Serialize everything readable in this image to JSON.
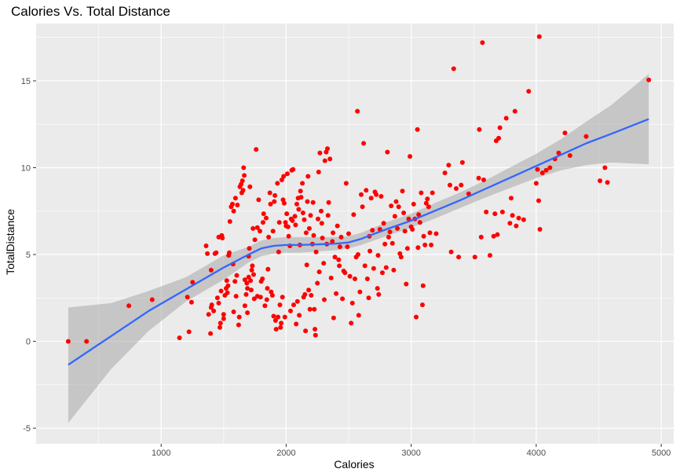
{
  "chart_data": {
    "type": "scatter",
    "title": "Calories Vs. Total Distance",
    "xlabel": "Calories",
    "ylabel": "TotalDistance",
    "xlim": [
      0,
      5100
    ],
    "ylim": [
      -5.9,
      18.3
    ],
    "x_ticks": [
      1000,
      2000,
      3000,
      4000,
      5000
    ],
    "y_ticks": [
      -5,
      0,
      5,
      10,
      15
    ],
    "x_minor": [
      500,
      1500,
      2500,
      3500,
      4500
    ],
    "y_minor": [
      -2.5,
      2.5,
      7.5,
      12.5,
      17.5
    ],
    "grid": true,
    "legend": "none",
    "colors": {
      "panel": "#ebebeb",
      "grid": "#ffffff",
      "points": "#ff0000",
      "smooth_line": "#3366ff",
      "ribbon": "#999999"
    },
    "points": [
      [
        257,
        0
      ],
      [
        403,
        0
      ],
      [
        742,
        2.05
      ],
      [
        928,
        2.4
      ],
      [
        1147,
        0.2
      ],
      [
        1210,
        2.55
      ],
      [
        1223,
        0.55
      ],
      [
        1243,
        2.25
      ],
      [
        1252,
        3.4
      ],
      [
        1360,
        5.5
      ],
      [
        1370,
        5.05
      ],
      [
        1380,
        1.55
      ],
      [
        1395,
        0.45
      ],
      [
        1400,
        1.95
      ],
      [
        1400,
        4.1
      ],
      [
        1405,
        2.1
      ],
      [
        1420,
        1.75
      ],
      [
        1430,
        5.05
      ],
      [
        1440,
        5.1
      ],
      [
        1450,
        2.5
      ],
      [
        1460,
        2.2
      ],
      [
        1460,
        6.0
      ],
      [
        1470,
        0.8
      ],
      [
        1475,
        1.05
      ],
      [
        1480,
        2.9
      ],
      [
        1485,
        6.1
      ],
      [
        1490,
        5.95
      ],
      [
        1500,
        1.3
      ],
      [
        1500,
        1.55
      ],
      [
        1510,
        2.65
      ],
      [
        1520,
        3.05
      ],
      [
        1525,
        3.5
      ],
      [
        1530,
        2.8
      ],
      [
        1535,
        3.2
      ],
      [
        1540,
        4.95
      ],
      [
        1545,
        5.1
      ],
      [
        1550,
        6.9
      ],
      [
        1560,
        7.75
      ],
      [
        1570,
        7.9
      ],
      [
        1575,
        4.45
      ],
      [
        1580,
        1.7
      ],
      [
        1580,
        7.5
      ],
      [
        1590,
        3.45
      ],
      [
        1595,
        8.25
      ],
      [
        1600,
        2.6
      ],
      [
        1605,
        3.8
      ],
      [
        1610,
        7.85
      ],
      [
        1620,
        0.95
      ],
      [
        1625,
        1.4
      ],
      [
        1630,
        8.9
      ],
      [
        1640,
        9.05
      ],
      [
        1645,
        8.55
      ],
      [
        1650,
        9.25
      ],
      [
        1655,
        8.7
      ],
      [
        1660,
        10.0
      ],
      [
        1665,
        9.55
      ],
      [
        1670,
        3.55
      ],
      [
        1670,
        2.05
      ],
      [
        1680,
        2.7
      ],
      [
        1685,
        3.35
      ],
      [
        1690,
        3.05
      ],
      [
        1690,
        1.65
      ],
      [
        1700,
        3.7
      ],
      [
        1700,
        4.9
      ],
      [
        1705,
        5.35
      ],
      [
        1710,
        8.9
      ],
      [
        1715,
        3.5
      ],
      [
        1720,
        2.95
      ],
      [
        1725,
        4.1
      ],
      [
        1730,
        4.35
      ],
      [
        1735,
        6.5
      ],
      [
        1740,
        3.85
      ],
      [
        1745,
        2.45
      ],
      [
        1750,
        5.85
      ],
      [
        1760,
        11.05
      ],
      [
        1770,
        6.55
      ],
      [
        1770,
        2.6
      ],
      [
        1780,
        8.15
      ],
      [
        1790,
        6.35
      ],
      [
        1795,
        2.55
      ],
      [
        1800,
        3.45
      ],
      [
        1810,
        3.6
      ],
      [
        1815,
        6.85
      ],
      [
        1820,
        7.35
      ],
      [
        1830,
        2.05
      ],
      [
        1840,
        7.1
      ],
      [
        1845,
        2.4
      ],
      [
        1850,
        3.05
      ],
      [
        1855,
        4.15
      ],
      [
        1860,
        6.0
      ],
      [
        1870,
        8.55
      ],
      [
        1875,
        7.9
      ],
      [
        1880,
        2.85
      ],
      [
        1890,
        2.65
      ],
      [
        1895,
        6.35
      ],
      [
        1900,
        1.45
      ],
      [
        1905,
        8.05
      ],
      [
        1910,
        8.4
      ],
      [
        1915,
        1.2
      ],
      [
        1920,
        0.7
      ],
      [
        1930,
        9.1
      ],
      [
        1935,
        1.4
      ],
      [
        1940,
        5.15
      ],
      [
        1945,
        6.85
      ],
      [
        1950,
        2.1
      ],
      [
        1955,
        0.8
      ],
      [
        1960,
        1.05
      ],
      [
        1965,
        9.3
      ],
      [
        1970,
        2.55
      ],
      [
        1975,
        8.15
      ],
      [
        1980,
        9.5
      ],
      [
        1985,
        7.95
      ],
      [
        1990,
        1.4
      ],
      [
        1995,
        6.85
      ],
      [
        2000,
        6.65
      ],
      [
        2005,
        7.35
      ],
      [
        2010,
        9.65
      ],
      [
        2015,
        6.6
      ],
      [
        2020,
        6.05
      ],
      [
        2030,
        5.5
      ],
      [
        2035,
        1.75
      ],
      [
        2040,
        7.05
      ],
      [
        2045,
        9.85
      ],
      [
        2050,
        6.95
      ],
      [
        2055,
        9.9
      ],
      [
        2060,
        2.1
      ],
      [
        2070,
        7.2
      ],
      [
        2075,
        6.7
      ],
      [
        2080,
        1.0
      ],
      [
        2085,
        7.9
      ],
      [
        2090,
        2.3
      ],
      [
        2095,
        8.25
      ],
      [
        2100,
        7.6
      ],
      [
        2105,
        1.5
      ],
      [
        2110,
        5.55
      ],
      [
        2115,
        8.65
      ],
      [
        2120,
        8.3
      ],
      [
        2130,
        9.1
      ],
      [
        2135,
        7.4
      ],
      [
        2140,
        2.55
      ],
      [
        2145,
        7.0
      ],
      [
        2150,
        2.7
      ],
      [
        2155,
        0.6
      ],
      [
        2160,
        6.25
      ],
      [
        2165,
        4.4
      ],
      [
        2170,
        8.05
      ],
      [
        2175,
        9.5
      ],
      [
        2180,
        2.95
      ],
      [
        2185,
        6.5
      ],
      [
        2190,
        1.85
      ],
      [
        2195,
        7.25
      ],
      [
        2200,
        2.65
      ],
      [
        2210,
        5.6
      ],
      [
        2215,
        8.0
      ],
      [
        2220,
        6.1
      ],
      [
        2225,
        1.85
      ],
      [
        2230,
        0.7
      ],
      [
        2235,
        0.35
      ],
      [
        2240,
        5.15
      ],
      [
        2250,
        3.35
      ],
      [
        2255,
        7.05
      ],
      [
        2260,
        9.75
      ],
      [
        2265,
        4.0
      ],
      [
        2270,
        10.85
      ],
      [
        2280,
        7.5
      ],
      [
        2285,
        6.8
      ],
      [
        2290,
        5.95
      ],
      [
        2300,
        4.5
      ],
      [
        2305,
        2.4
      ],
      [
        2310,
        10.4
      ],
      [
        2320,
        10.9
      ],
      [
        2325,
        5.6
      ],
      [
        2330,
        11.1
      ],
      [
        2335,
        7.25
      ],
      [
        2340,
        8.0
      ],
      [
        2350,
        10.5
      ],
      [
        2360,
        3.65
      ],
      [
        2370,
        5.75
      ],
      [
        2375,
        6.25
      ],
      [
        2380,
        1.35
      ],
      [
        2390,
        4.85
      ],
      [
        2400,
        2.75
      ],
      [
        2410,
        6.65
      ],
      [
        2420,
        4.7
      ],
      [
        2425,
        4.35
      ],
      [
        2430,
        5.45
      ],
      [
        2440,
        6.0
      ],
      [
        2450,
        2.45
      ],
      [
        2460,
        4.05
      ],
      [
        2470,
        3.95
      ],
      [
        2480,
        9.1
      ],
      [
        2490,
        5.45
      ],
      [
        2500,
        6.2
      ],
      [
        2510,
        3.75
      ],
      [
        2520,
        1.05
      ],
      [
        2530,
        2.2
      ],
      [
        2540,
        7.3
      ],
      [
        2550,
        3.6
      ],
      [
        2560,
        4.85
      ],
      [
        2570,
        13.25
      ],
      [
        2575,
        5.0
      ],
      [
        2580,
        1.5
      ],
      [
        2590,
        2.85
      ],
      [
        2600,
        8.45
      ],
      [
        2610,
        7.75
      ],
      [
        2620,
        11.4
      ],
      [
        2630,
        4.35
      ],
      [
        2640,
        8.7
      ],
      [
        2650,
        3.6
      ],
      [
        2660,
        2.5
      ],
      [
        2665,
        6.05
      ],
      [
        2670,
        5.2
      ],
      [
        2680,
        8.25
      ],
      [
        2690,
        6.4
      ],
      [
        2700,
        4.2
      ],
      [
        2710,
        8.6
      ],
      [
        2720,
        8.45
      ],
      [
        2730,
        3.05
      ],
      [
        2735,
        4.95
      ],
      [
        2740,
        2.7
      ],
      [
        2750,
        6.45
      ],
      [
        2760,
        8.35
      ],
      [
        2770,
        3.95
      ],
      [
        2780,
        6.8
      ],
      [
        2790,
        5.6
      ],
      [
        2800,
        4.25
      ],
      [
        2810,
        10.9
      ],
      [
        2820,
        6.0
      ],
      [
        2830,
        6.3
      ],
      [
        2840,
        7.8
      ],
      [
        2850,
        5.65
      ],
      [
        2860,
        4.1
      ],
      [
        2870,
        7.2
      ],
      [
        2880,
        8.05
      ],
      [
        2890,
        6.5
      ],
      [
        2900,
        7.75
      ],
      [
        2910,
        5.05
      ],
      [
        2920,
        4.85
      ],
      [
        2930,
        8.65
      ],
      [
        2940,
        7.4
      ],
      [
        2950,
        6.35
      ],
      [
        2960,
        3.3
      ],
      [
        2970,
        5.35
      ],
      [
        2980,
        7.05
      ],
      [
        2990,
        10.65
      ],
      [
        3000,
        6.6
      ],
      [
        3010,
        6.45
      ],
      [
        3020,
        7.9
      ],
      [
        3030,
        7.05
      ],
      [
        3040,
        1.4
      ],
      [
        3050,
        12.2
      ],
      [
        3055,
        5.4
      ],
      [
        3060,
        7.3
      ],
      [
        3070,
        6.85
      ],
      [
        3080,
        8.55
      ],
      [
        3090,
        2.1
      ],
      [
        3095,
        3.2
      ],
      [
        3100,
        6.05
      ],
      [
        3110,
        5.55
      ],
      [
        3120,
        7.95
      ],
      [
        3130,
        8.2
      ],
      [
        3140,
        7.75
      ],
      [
        3150,
        6.25
      ],
      [
        3160,
        5.55
      ],
      [
        3170,
        8.55
      ],
      [
        3200,
        6.2
      ],
      [
        3270,
        9.7
      ],
      [
        3300,
        10.15
      ],
      [
        3310,
        9.0
      ],
      [
        3320,
        5.15
      ],
      [
        3340,
        15.7
      ],
      [
        3360,
        8.8
      ],
      [
        3380,
        4.85
      ],
      [
        3400,
        9.0
      ],
      [
        3410,
        10.3
      ],
      [
        3460,
        8.5
      ],
      [
        3510,
        4.85
      ],
      [
        3540,
        9.4
      ],
      [
        3545,
        12.2
      ],
      [
        3560,
        6.0
      ],
      [
        3570,
        17.2
      ],
      [
        3580,
        9.3
      ],
      [
        3600,
        7.45
      ],
      [
        3630,
        4.95
      ],
      [
        3660,
        6.05
      ],
      [
        3670,
        7.35
      ],
      [
        3680,
        11.55
      ],
      [
        3690,
        6.15
      ],
      [
        3700,
        11.7
      ],
      [
        3710,
        12.3
      ],
      [
        3730,
        7.45
      ],
      [
        3760,
        12.85
      ],
      [
        3790,
        6.8
      ],
      [
        3800,
        8.25
      ],
      [
        3810,
        7.25
      ],
      [
        3830,
        13.25
      ],
      [
        3840,
        6.65
      ],
      [
        3860,
        7.1
      ],
      [
        3900,
        7.0
      ],
      [
        3940,
        14.4
      ],
      [
        4000,
        9.1
      ],
      [
        4010,
        9.9
      ],
      [
        4020,
        8.1
      ],
      [
        4025,
        17.55
      ],
      [
        4030,
        6.45
      ],
      [
        4050,
        9.7
      ],
      [
        4080,
        9.85
      ],
      [
        4110,
        10.0
      ],
      [
        4150,
        10.5
      ],
      [
        4180,
        10.85
      ],
      [
        4230,
        12.0
      ],
      [
        4270,
        10.7
      ],
      [
        4400,
        11.8
      ],
      [
        4510,
        9.25
      ],
      [
        4550,
        10.0
      ],
      [
        4570,
        9.15
      ],
      [
        4900,
        15.05
      ]
    ],
    "smooth": {
      "x": [
        257,
        600,
        900,
        1200,
        1500,
        1700,
        1800,
        1900,
        2000,
        2100,
        2200,
        2300,
        2400,
        2500,
        2600,
        2700,
        2800,
        2900,
        3000,
        3200,
        3400,
        3600,
        3800,
        4000,
        4200,
        4400,
        4600,
        4900
      ],
      "fit": [
        -1.35,
        0.3,
        1.75,
        3.0,
        4.25,
        5.0,
        5.35,
        5.5,
        5.55,
        5.55,
        5.57,
        5.6,
        5.63,
        5.7,
        5.9,
        6.18,
        6.45,
        6.7,
        6.95,
        7.55,
        8.15,
        8.8,
        9.45,
        10.1,
        10.75,
        11.4,
        11.95,
        12.8
      ],
      "lower": [
        -4.7,
        -1.6,
        0.6,
        2.3,
        3.55,
        4.55,
        4.9,
        5.05,
        5.1,
        5.1,
        5.15,
        5.2,
        5.25,
        5.35,
        5.55,
        5.8,
        6.05,
        6.3,
        6.55,
        7.1,
        7.7,
        8.3,
        8.85,
        9.4,
        9.85,
        10.15,
        10.3,
        10.2
      ],
      "upper": [
        1.95,
        2.2,
        2.9,
        3.7,
        4.95,
        5.45,
        5.8,
        5.95,
        6.0,
        6.0,
        6.0,
        6.0,
        6.0,
        6.05,
        6.25,
        6.55,
        6.85,
        7.1,
        7.35,
        8.0,
        8.6,
        9.3,
        10.05,
        10.8,
        11.65,
        12.65,
        13.6,
        15.4
      ]
    }
  }
}
